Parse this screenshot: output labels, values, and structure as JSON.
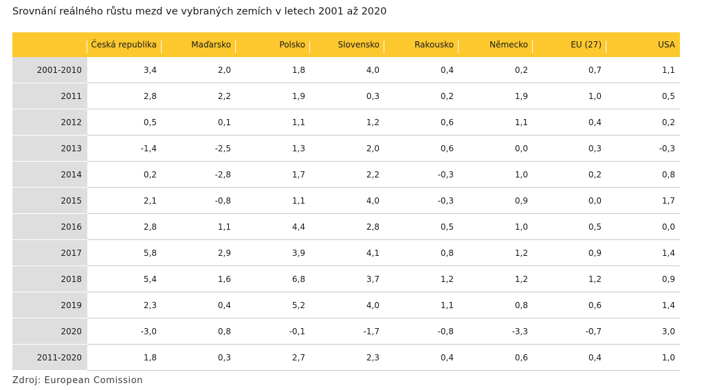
{
  "title": "Srovnání reálného růstu mezd ve vybraných zemích v letech 2001 až 2020",
  "source": "Zdroj: European Comission",
  "colors": {
    "header_background": "#fcc82e",
    "row_label_background": "#dedede"
  },
  "table": {
    "columns": [
      "Česká republika",
      "Maďarsko",
      "Polsko",
      "Slovensko",
      "Rakousko",
      "Německo",
      "EU (27)",
      "USA"
    ],
    "rows": [
      {
        "label": "2001-2010",
        "values": [
          "3,4",
          "2,0",
          "1,8",
          "4,0",
          "0,4",
          "0,2",
          "0,7",
          "1,1"
        ]
      },
      {
        "label": "2011",
        "values": [
          "2,8",
          "2,2",
          "1,9",
          "0,3",
          "0,2",
          "1,9",
          "1,0",
          "0,5"
        ]
      },
      {
        "label": "2012",
        "values": [
          "0,5",
          "0,1",
          "1,1",
          "1,2",
          "0,6",
          "1,1",
          "0,4",
          "0,2"
        ]
      },
      {
        "label": "2013",
        "values": [
          "-1,4",
          "-2,5",
          "1,3",
          "2,0",
          "0,6",
          "0,0",
          "0,3",
          "-0,3"
        ]
      },
      {
        "label": "2014",
        "values": [
          "0,2",
          "-2,8",
          "1,7",
          "2,2",
          "-0,3",
          "1,0",
          "0,2",
          "0,8"
        ]
      },
      {
        "label": "2015",
        "values": [
          "2,1",
          "-0,8",
          "1,1",
          "4,0",
          "-0,3",
          "0,9",
          "0,0",
          "1,7"
        ]
      },
      {
        "label": "2016",
        "values": [
          "2,8",
          "1,1",
          "4,4",
          "2,8",
          "0,5",
          "1,0",
          "0,5",
          "0,0"
        ]
      },
      {
        "label": "2017",
        "values": [
          "5,8",
          "2,9",
          "3,9",
          "4,1",
          "0,8",
          "1,2",
          "0,9",
          "1,4"
        ]
      },
      {
        "label": "2018",
        "values": [
          "5,4",
          "1,6",
          "6,8",
          "3,7",
          "1,2",
          "1,2",
          "1,2",
          "0,9"
        ]
      },
      {
        "label": "2019",
        "values": [
          "2,3",
          "0,4",
          "5,2",
          "4,0",
          "1,1",
          "0,8",
          "0,6",
          "1,4"
        ]
      },
      {
        "label": "2020",
        "values": [
          "-3,0",
          "0,8",
          "-0,1",
          "-1,7",
          "-0,8",
          "-3,3",
          "-0,7",
          "3,0"
        ]
      },
      {
        "label": "2011-2020",
        "values": [
          "1,8",
          "0,3",
          "2,7",
          "2,3",
          "0,4",
          "0,6",
          "0,4",
          "1,0"
        ]
      }
    ]
  }
}
